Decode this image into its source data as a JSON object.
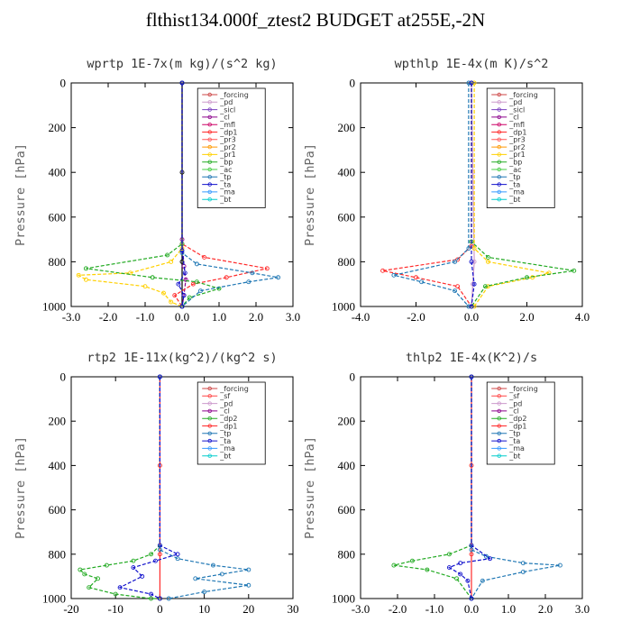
{
  "title": "flthist134.000f_ztest2  BUDGET at255E,-2N",
  "chart_data": [
    {
      "type": "line",
      "title": "wprtp  1E-7x(m kg)/(s^2 kg)",
      "ylabel": "Pressure [hPa]",
      "xlim": [
        -3.0,
        3.0
      ],
      "ylim": [
        1000,
        0
      ],
      "xticks": [
        "-3.0",
        "-2.0",
        "-1.0",
        "0.0",
        "1.0",
        "2.0",
        "3.0"
      ],
      "yticks": [
        "0",
        "200",
        "400",
        "600",
        "800",
        "1000"
      ],
      "legend": [
        "_forcing",
        "_pd",
        "_sicl",
        "_cl",
        "_mfl",
        "_dp1",
        "_pr3",
        "_pr2",
        "_pr1",
        "_bp",
        "_ac",
        "_tp",
        "_ta",
        "_ma",
        "_bt"
      ],
      "series": [
        {
          "name": "_forcing",
          "color": "#000000",
          "x": [
            0,
            0,
            0,
            0
          ],
          "y": [
            0,
            400,
            800,
            1000
          ]
        },
        {
          "name": "_cl",
          "color": "#8b008b",
          "x": [
            0,
            0,
            0.05,
            0.1,
            0.05,
            0
          ],
          "y": [
            0,
            700,
            820,
            880,
            950,
            1000
          ]
        },
        {
          "name": "_dp1",
          "color": "#ff2a2a",
          "x": [
            0,
            0,
            0.6,
            2.3,
            1.2,
            0.3,
            -0.2,
            0
          ],
          "y": [
            0,
            720,
            780,
            830,
            870,
            900,
            950,
            1000
          ]
        },
        {
          "name": "_pr1",
          "color": "#ffd000",
          "x": [
            0,
            0,
            -0.3,
            -1.4,
            -2.8,
            -2.6,
            -1.0,
            -0.5,
            -0.3,
            0
          ],
          "y": [
            0,
            740,
            800,
            850,
            860,
            880,
            910,
            940,
            980,
            1000
          ]
        },
        {
          "name": "_bp",
          "color": "#22aa22",
          "x": [
            0,
            0,
            -0.4,
            -2.6,
            -0.8,
            0.4,
            1.0,
            0.2,
            0
          ],
          "y": [
            0,
            720,
            770,
            830,
            870,
            890,
            920,
            960,
            1000
          ]
        },
        {
          "name": "_tp",
          "color": "#1f77b4",
          "x": [
            0,
            0,
            0.4,
            1.9,
            2.6,
            1.8,
            0.5,
            0
          ],
          "y": [
            0,
            760,
            810,
            850,
            870,
            890,
            930,
            1000
          ]
        },
        {
          "name": "_ta",
          "color": "#1010cc",
          "x": [
            0,
            0,
            0.08,
            -0.1,
            0.05,
            0
          ],
          "y": [
            0,
            750,
            850,
            900,
            950,
            1000
          ]
        }
      ]
    },
    {
      "type": "line",
      "title": "wpthlp  1E-4x(m K)/s^2",
      "ylabel": "Pressure [hPa]",
      "xlim": [
        -4.0,
        4.0
      ],
      "ylim": [
        1000,
        0
      ],
      "xticks": [
        "-4.0",
        "-2.0",
        "0.0",
        "2.0",
        "4.0"
      ],
      "yticks": [
        "0",
        "200",
        "400",
        "600",
        "800",
        "1000"
      ],
      "legend": [
        "_forcing",
        "_pd",
        "_sicl",
        "_cl",
        "_mfl",
        "_dp1",
        "_pr3",
        "_pr2",
        "_pr1",
        "_bp",
        "_ac",
        "_tp",
        "_ta",
        "_ma",
        "_bt"
      ],
      "series": [
        {
          "name": "_forcing",
          "color": "#cc99cc",
          "x": [
            0,
            0.05,
            0.1,
            0.05,
            0
          ],
          "y": [
            0,
            400,
            800,
            900,
            1000
          ]
        },
        {
          "name": "_dp1",
          "color": "#ff2a2a",
          "x": [
            0,
            0,
            -0.5,
            -3.2,
            -2.0,
            -0.5,
            0
          ],
          "y": [
            0,
            730,
            790,
            840,
            870,
            910,
            1000
          ]
        },
        {
          "name": "_pr1",
          "color": "#ffd000",
          "x": [
            0.1,
            0.1,
            0.6,
            2.8,
            2.2,
            0.6,
            0.1
          ],
          "y": [
            0,
            740,
            800,
            850,
            870,
            910,
            1000
          ]
        },
        {
          "name": "_bp",
          "color": "#22aa22",
          "x": [
            0,
            0,
            0.6,
            3.7,
            2.0,
            0.5,
            0
          ],
          "y": [
            0,
            710,
            780,
            840,
            870,
            910,
            1000
          ]
        },
        {
          "name": "_tp",
          "color": "#1f77b4",
          "x": [
            -0.1,
            -0.1,
            -0.6,
            -2.8,
            -1.8,
            -0.6,
            -0.1
          ],
          "y": [
            0,
            740,
            800,
            860,
            890,
            930,
            1000
          ]
        },
        {
          "name": "_ta",
          "color": "#1010cc",
          "x": [
            0,
            0,
            0.1,
            0
          ],
          "y": [
            0,
            800,
            900,
            1000
          ]
        }
      ]
    },
    {
      "type": "line",
      "title": "rtp2  1E-11x(kg^2)/(kg^2 s)",
      "ylabel": "Pressure [hPa]",
      "xlim": [
        -20,
        30
      ],
      "ylim": [
        1000,
        0
      ],
      "xticks": [
        "-20",
        "-10",
        "0",
        "10",
        "20",
        "30"
      ],
      "yticks": [
        "0",
        "200",
        "400",
        "600",
        "800",
        "1000"
      ],
      "legend": [
        "_forcing",
        "_sf",
        "_pd",
        "_cl",
        "_dp2",
        "_dp1",
        "_tp",
        "_ta",
        "_ma",
        "_bt"
      ],
      "series": [
        {
          "name": "_forcing",
          "color": "#ff2a2a",
          "x": [
            0,
            0,
            0,
            0
          ],
          "y": [
            0,
            400,
            800,
            1000
          ]
        },
        {
          "name": "_dp2",
          "color": "#22aa22",
          "x": [
            0,
            0,
            -2,
            -6,
            -12,
            -18,
            -17,
            -14,
            -16,
            -10,
            -2,
            0
          ],
          "y": [
            0,
            760,
            800,
            830,
            850,
            870,
            890,
            910,
            950,
            980,
            1000,
            1000
          ]
        },
        {
          "name": "_tp",
          "color": "#1f77b4",
          "x": [
            0,
            0,
            4,
            12,
            20,
            14,
            8,
            20,
            10,
            2
          ],
          "y": [
            0,
            780,
            820,
            850,
            870,
            890,
            910,
            940,
            970,
            1000
          ]
        },
        {
          "name": "_ta",
          "color": "#1010cc",
          "x": [
            0,
            0,
            4,
            -1,
            -6,
            -4,
            -9,
            -2,
            0
          ],
          "y": [
            0,
            760,
            800,
            830,
            860,
            900,
            950,
            980,
            1000
          ]
        }
      ]
    },
    {
      "type": "line",
      "title": "thlp2  1E-4x(K^2)/s",
      "ylabel": "Pressure [hPa]",
      "xlim": [
        -3.0,
        3.0
      ],
      "ylim": [
        1000,
        0
      ],
      "xticks": [
        "-3.0",
        "-2.0",
        "-1.0",
        "0.0",
        "1.0",
        "2.0",
        "3.0"
      ],
      "yticks": [
        "0",
        "200",
        "400",
        "600",
        "800",
        "1000"
      ],
      "legend": [
        "_forcing",
        "_sf",
        "_pd",
        "_cl",
        "_dp2",
        "_dp1",
        "_tp",
        "_ta",
        "_ma",
        "_bt"
      ],
      "series": [
        {
          "name": "_forcing",
          "color": "#ff2a2a",
          "x": [
            0,
            0,
            0,
            0
          ],
          "y": [
            0,
            400,
            800,
            1000
          ]
        },
        {
          "name": "_dp2",
          "color": "#22aa22",
          "x": [
            0,
            0,
            -0.6,
            -1.6,
            -2.1,
            -1.2,
            -0.4,
            0
          ],
          "y": [
            0,
            760,
            800,
            830,
            850,
            870,
            910,
            1000
          ]
        },
        {
          "name": "_tp",
          "color": "#1f77b4",
          "x": [
            0,
            0,
            0.4,
            1.4,
            2.4,
            1.4,
            0.3,
            0
          ],
          "y": [
            0,
            780,
            810,
            840,
            850,
            880,
            920,
            1000
          ]
        },
        {
          "name": "_ta",
          "color": "#1010cc",
          "x": [
            0,
            0,
            0.5,
            -0.3,
            -0.6,
            -0.3,
            -0.1,
            0
          ],
          "y": [
            0,
            760,
            820,
            840,
            860,
            890,
            920,
            1000
          ]
        }
      ]
    }
  ]
}
